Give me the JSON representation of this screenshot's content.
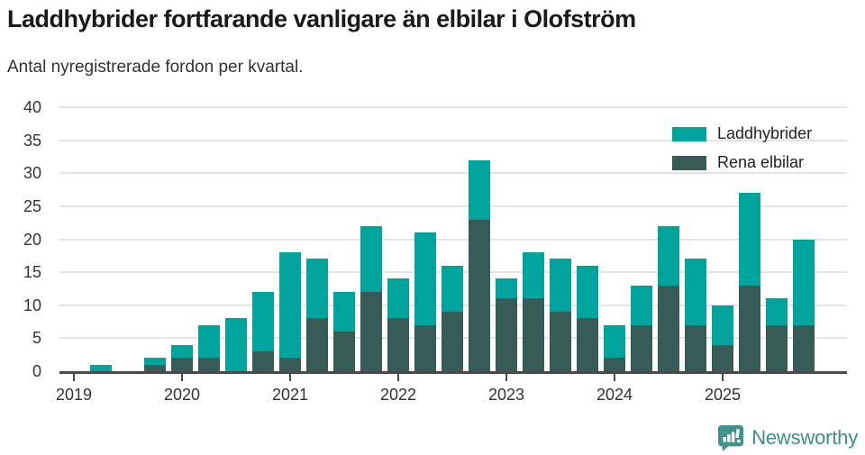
{
  "header": {
    "title": "Laddhybrider fortfarande vanligare än elbilar i Olofström",
    "subtitle": "Antal nyregistrerade fordon per kvartal."
  },
  "chart_data": {
    "type": "bar",
    "stacked": true,
    "title": "Laddhybrider fortfarande vanligare än elbilar i Olofström",
    "subtitle": "Antal nyregistrerade fordon per kvartal.",
    "categories": [
      "2019-Q1",
      "2019-Q2",
      "2019-Q3",
      "2019-Q4",
      "2020-Q1",
      "2020-Q2",
      "2020-Q3",
      "2020-Q4",
      "2021-Q1",
      "2021-Q2",
      "2021-Q3",
      "2021-Q4",
      "2022-Q1",
      "2022-Q2",
      "2022-Q3",
      "2022-Q4",
      "2023-Q1",
      "2023-Q2",
      "2023-Q3",
      "2023-Q4",
      "2024-Q1",
      "2024-Q2",
      "2024-Q3",
      "2024-Q4",
      "2025-Q1",
      "2025-Q2",
      "2025-Q3",
      "2025-Q4"
    ],
    "series": [
      {
        "name": "Laddhybrider",
        "color": "#00a49c",
        "values": [
          0,
          1,
          0,
          1,
          2,
          5,
          8,
          9,
          16,
          9,
          6,
          10,
          6,
          14,
          7,
          9,
          3,
          7,
          8,
          8,
          5,
          6,
          9,
          10,
          6,
          14,
          4,
          13
        ]
      },
      {
        "name": "Rena elbilar",
        "color": "#375c57",
        "values": [
          0,
          0,
          0,
          1,
          2,
          2,
          0,
          3,
          2,
          8,
          6,
          12,
          8,
          7,
          9,
          23,
          11,
          11,
          9,
          8,
          2,
          7,
          13,
          7,
          4,
          13,
          7,
          7
        ]
      }
    ],
    "totals": [
      0,
      1,
      0,
      2,
      4,
      7,
      8,
      12,
      18,
      17,
      12,
      22,
      14,
      21,
      16,
      32,
      14,
      18,
      17,
      16,
      7,
      13,
      22,
      17,
      10,
      27,
      11,
      20
    ],
    "ylabel": "",
    "xlabel": "",
    "ylim": [
      0,
      40
    ],
    "yticks": [
      0,
      5,
      10,
      15,
      20,
      25,
      30,
      35,
      40
    ],
    "year_labels": [
      "2019",
      "2020",
      "2021",
      "2022",
      "2023",
      "2024",
      "2025"
    ],
    "grid": true,
    "legend_position": "top-right"
  },
  "colors": {
    "laddhybrider": "#00a49c",
    "rena_elbilar": "#375c57",
    "gridline": "#e4e4e4",
    "axis": "#4a4a4a",
    "text": "#333333",
    "brand": "#3e8e8a"
  },
  "footer": {
    "brand": "Newsworthy"
  }
}
